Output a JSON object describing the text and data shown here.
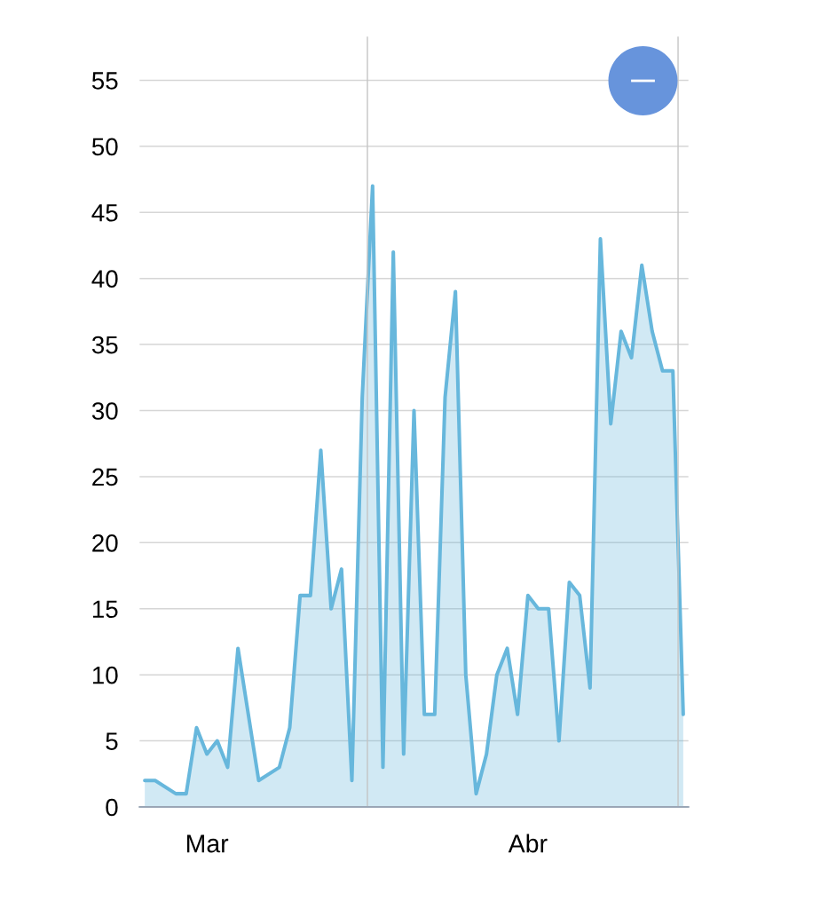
{
  "chart_data": {
    "type": "area",
    "categories": [
      null,
      null,
      null,
      null,
      null,
      null,
      "Mar",
      null,
      null,
      null,
      null,
      null,
      null,
      null,
      null,
      null,
      null,
      null,
      null,
      null,
      null,
      null,
      null,
      null,
      null,
      null,
      null,
      null,
      null,
      null,
      null,
      null,
      null,
      null,
      null,
      null,
      null,
      "Abr",
      null,
      null,
      null,
      null,
      null,
      null,
      null,
      null,
      null,
      null,
      null,
      null,
      null,
      null,
      null
    ],
    "series": [
      {
        "color": "#67b7dc",
        "values": [
          2,
          2,
          null,
          1,
          1,
          6,
          4,
          5,
          3,
          12,
          null,
          2,
          null,
          3,
          6,
          16,
          16,
          27,
          15,
          18,
          2,
          31,
          47,
          3,
          42,
          4,
          30,
          7,
          7,
          31,
          39,
          10,
          1,
          4,
          10,
          12,
          7,
          16,
          15,
          15,
          5,
          17,
          16,
          9,
          43,
          29,
          36,
          34,
          41,
          36,
          33,
          33,
          7
        ]
      }
    ],
    "ylim": [
      0,
      58.3
    ],
    "yticks": [
      0,
      5,
      10,
      15,
      20,
      25,
      30,
      35,
      40,
      45,
      50,
      55
    ],
    "grid": "y",
    "line_style": "solid"
  }
}
